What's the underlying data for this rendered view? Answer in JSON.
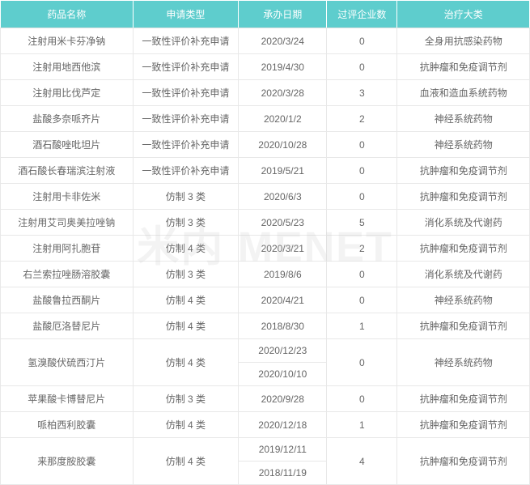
{
  "table": {
    "header_bg": "#5ecdcd",
    "header_color": "#ffffff",
    "cell_color": "#666666",
    "border_color": "#e8e8e8",
    "columns": [
      "药品名称",
      "申请类型",
      "承办日期",
      "过评企业数",
      "治疗大类"
    ],
    "col_widths": [
      "150px",
      "120px",
      "100px",
      "80px",
      "150px"
    ],
    "rows": [
      {
        "cells": [
          "注射用米卡芬净钠",
          "一致性评价补充申请",
          "2020/3/24",
          "0",
          "全身用抗感染药物"
        ]
      },
      {
        "cells": [
          "注射用地西他滨",
          "一致性评价补充申请",
          "2019/4/30",
          "0",
          "抗肿瘤和免疫调节剂"
        ]
      },
      {
        "cells": [
          "注射用比伐芦定",
          "一致性评价补充申请",
          "2020/3/28",
          "3",
          "血液和造血系统药物"
        ]
      },
      {
        "cells": [
          "盐酸多奈哌齐片",
          "一致性评价补充申请",
          "2020/1/2",
          "2",
          "神经系统药物"
        ]
      },
      {
        "cells": [
          "酒石酸唑吡坦片",
          "一致性评价补充申请",
          "2020/10/28",
          "0",
          "神经系统药物"
        ]
      },
      {
        "cells": [
          "酒石酸长春瑞滨注射液",
          "一致性评价补充申请",
          "2019/5/21",
          "0",
          "抗肿瘤和免疫调节剂"
        ]
      },
      {
        "cells": [
          "注射用卡非佐米",
          "仿制 3 类",
          "2020/6/3",
          "0",
          "抗肿瘤和免疫调节剂"
        ]
      },
      {
        "cells": [
          "注射用艾司奥美拉唑钠",
          "仿制 3 类",
          "2020/5/23",
          "5",
          "消化系统及代谢药"
        ]
      },
      {
        "cells": [
          "注射用阿扎胞苷",
          "仿制 4 类",
          "2020/3/21",
          "2",
          "抗肿瘤和免疫调节剂"
        ]
      },
      {
        "cells": [
          "右兰索拉唑肠溶胶囊",
          "仿制 3 类",
          "2019/8/6",
          "0",
          "消化系统及代谢药"
        ]
      },
      {
        "cells": [
          "盐酸鲁拉西酮片",
          "仿制 4 类",
          "2020/4/21",
          "0",
          "神经系统药物"
        ]
      },
      {
        "cells": [
          "盐酸厄洛替尼片",
          "仿制 4 类",
          "2018/8/30",
          "1",
          "抗肿瘤和免疫调节剂"
        ]
      }
    ],
    "merged_rows": [
      {
        "name": "氢溴酸伏硫西汀片",
        "type_text": "仿制 4 类",
        "dates": [
          "2020/12/23",
          "2020/10/10"
        ],
        "count": "0",
        "category": "神经系统药物"
      }
    ],
    "simple_rows_after": [
      {
        "cells": [
          "苹果酸卡博替尼片",
          "仿制 3 类",
          "2020/9/28",
          "0",
          "抗肿瘤和免疫调节剂"
        ]
      },
      {
        "cells": [
          "哌柏西利胶囊",
          "仿制 4 类",
          "2020/12/18",
          "1",
          "抗肿瘤和免疫调节剂"
        ]
      }
    ],
    "merged_rows_after": [
      {
        "name": "来那度胺胶囊",
        "type_text": "仿制 4 类",
        "dates": [
          "2019/12/11",
          "2018/11/19"
        ],
        "count": "4",
        "category": "抗肿瘤和免疫调节剂"
      }
    ]
  },
  "watermark_text": "米内 MENET"
}
